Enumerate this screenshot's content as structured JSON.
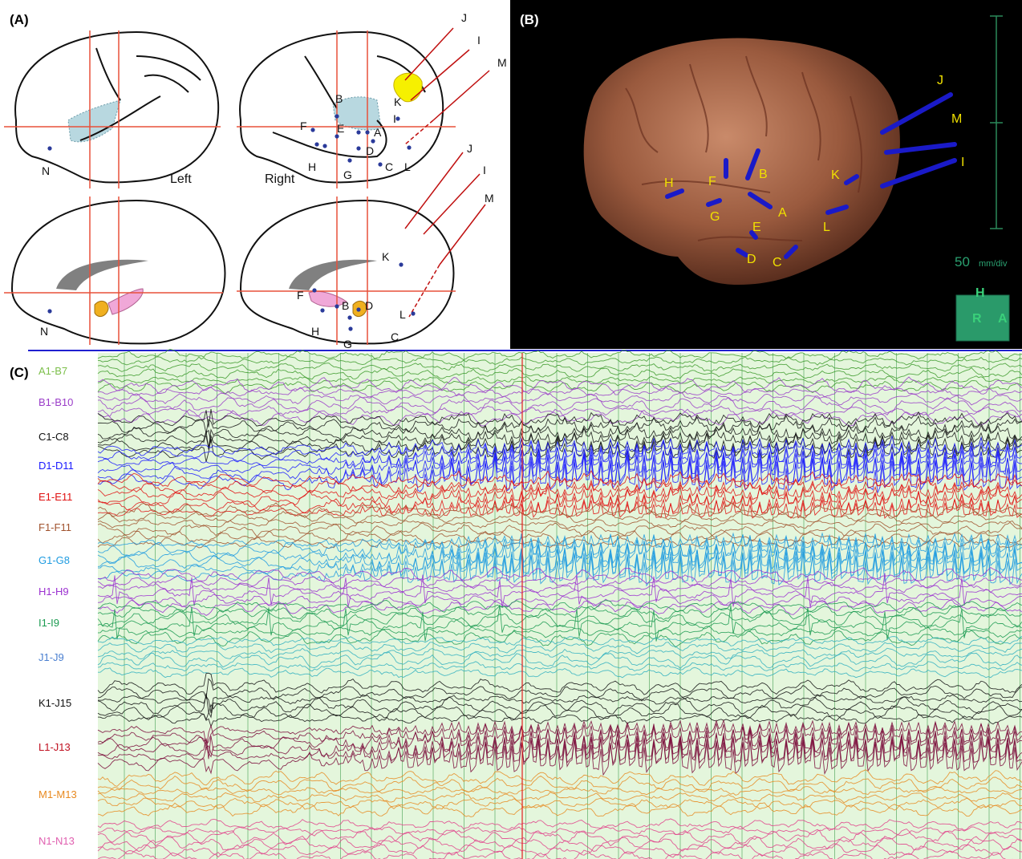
{
  "panel_a": {
    "label": "(A)",
    "left": "Left",
    "right": "Right",
    "labels": [
      "J",
      "I",
      "M",
      "J",
      "I",
      "M",
      "N",
      "B",
      "F",
      "E",
      "A",
      "I",
      "K",
      "D",
      "C",
      "L",
      "H",
      "G",
      "N",
      "K",
      "F",
      "B",
      "D",
      "L",
      "H",
      "C",
      "G"
    ]
  },
  "panel_b": {
    "label": "(B)",
    "electrode_labels": [
      "H",
      "F",
      "B",
      "G",
      "A",
      "E",
      "D",
      "C",
      "K",
      "L",
      "J",
      "M",
      "I"
    ],
    "scale_value": "50",
    "scale_unit": "mm/div",
    "orientation": [
      "H",
      "R",
      "A"
    ]
  },
  "panel_c": {
    "label": "(C)",
    "channels": [
      {
        "name": "A1-B7",
        "color": "#3c9a2a",
        "label_color": "#7cbf4a"
      },
      {
        "name": "B1-B10",
        "color": "#9a3cc8",
        "label_color": "#9a3cc8"
      },
      {
        "name": "C1-C8",
        "color": "#111111",
        "label_color": "#111111"
      },
      {
        "name": "D1-D11",
        "color": "#1a1aff",
        "label_color": "#1a1aff"
      },
      {
        "name": "E1-E11",
        "color": "#e01010",
        "label_color": "#e01010"
      },
      {
        "name": "F1-F11",
        "color": "#a0522d",
        "label_color": "#a0522d"
      },
      {
        "name": "G1-G8",
        "color": "#1e9be0",
        "label_color": "#1e9be0"
      },
      {
        "name": "H1-H9",
        "color": "#9b30d0",
        "label_color": "#9b30d0"
      },
      {
        "name": "I1-I9",
        "color": "#1a9a50",
        "label_color": "#1a9a50"
      },
      {
        "name": "J1-J9",
        "color": "#30b0c0",
        "label_color": "#4a7fd0"
      },
      {
        "name": "K1-J15",
        "color": "#111111",
        "label_color": "#111111"
      },
      {
        "name": "L1-J13",
        "color": "#7a0a3a",
        "label_color": "#c01020"
      },
      {
        "name": "M1-M13",
        "color": "#e88a20",
        "label_color": "#e88a20"
      },
      {
        "name": "N1-N13",
        "color": "#e0408a",
        "label_color": "#e060b0"
      }
    ]
  }
}
